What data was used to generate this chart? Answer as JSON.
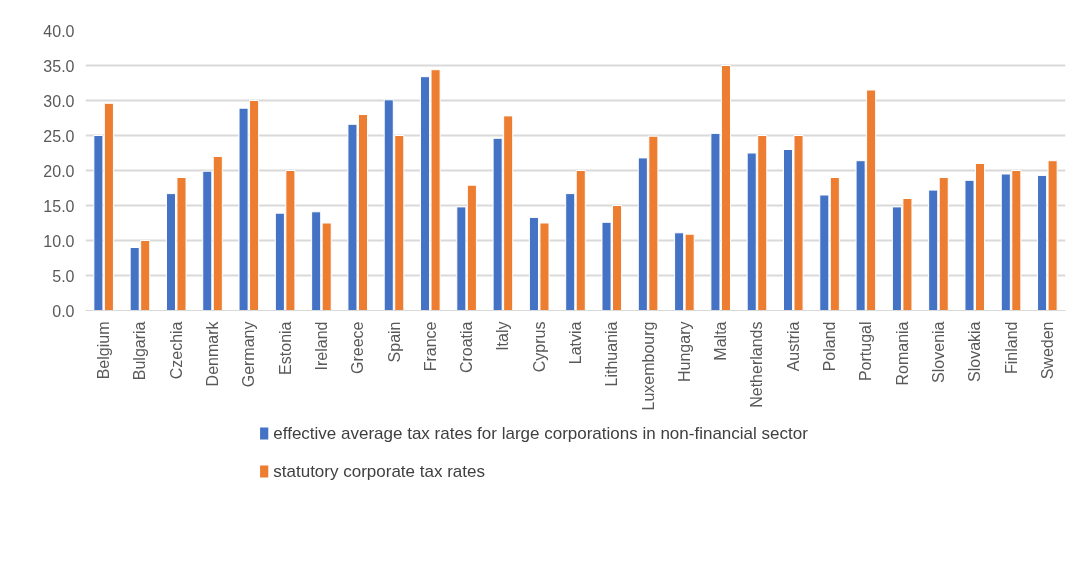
{
  "chart_data": {
    "type": "bar",
    "categories": [
      "Belgium",
      "Bulgaria",
      "Czechia",
      "Denmark",
      "Germany",
      "Estonia",
      "Ireland",
      "Greece",
      "Spain",
      "France",
      "Croatia",
      "Italy",
      "Cyprus",
      "Latvia",
      "Lithuania",
      "Luxembourg",
      "Hungary",
      "Malta",
      "Netherlands",
      "Austria",
      "Poland",
      "Portugal",
      "Romania",
      "Slovenia",
      "Slovakia",
      "Finland",
      "Sweden"
    ],
    "series": [
      {
        "name": "effective average tax rates for large corporations in non-financial sector",
        "color": "#4472c4",
        "values": [
          25.0,
          9.0,
          16.7,
          19.9,
          28.9,
          13.9,
          14.1,
          26.6,
          30.1,
          33.4,
          14.8,
          24.6,
          13.3,
          16.7,
          12.6,
          21.8,
          11.1,
          25.3,
          22.5,
          23.0,
          16.5,
          21.4,
          14.8,
          17.2,
          18.6,
          19.5,
          19.3
        ]
      },
      {
        "name": "statutory corporate tax rates",
        "color": "#ed7d31",
        "values": [
          29.6,
          10.0,
          19.0,
          22.0,
          30.0,
          20.0,
          12.5,
          28.0,
          25.0,
          34.4,
          17.9,
          27.8,
          12.5,
          20.0,
          15.0,
          24.9,
          10.9,
          35.0,
          25.0,
          25.0,
          19.0,
          31.5,
          16.0,
          19.0,
          21.0,
          20.0,
          21.4
        ]
      }
    ],
    "ylim": [
      0,
      40
    ],
    "yticks": [
      {
        "value": 0,
        "label": "0.0"
      },
      {
        "value": 5,
        "label": "5.0"
      },
      {
        "value": 10,
        "label": "10.0"
      },
      {
        "value": 15,
        "label": "15.0"
      },
      {
        "value": 20,
        "label": "20.0"
      },
      {
        "value": 25,
        "label": "25.0"
      },
      {
        "value": 30,
        "label": "30.0"
      },
      {
        "value": 35,
        "label": "35.0"
      },
      {
        "value": 40,
        "label": "40.0"
      }
    ],
    "grid": "y",
    "legend": "bottom"
  }
}
